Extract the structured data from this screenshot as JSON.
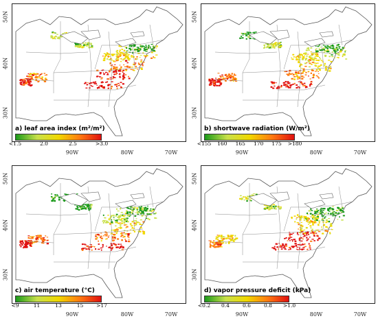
{
  "lat_labels": [
    "50N",
    "40N",
    "30N"
  ],
  "lon_labels": [
    "90W",
    "80W",
    "70W"
  ],
  "panels": [
    {
      "title": "a) leaf area index (m²/m²)",
      "ticks": [
        "<1.5",
        "2.0",
        "2.5",
        ">3.0"
      ],
      "colors": [
        "#1a9a1a",
        "#c8e04a",
        "#f0d800",
        "#ff7a10",
        "#e01010"
      ]
    },
    {
      "title": "b) shortwave radiation (W/m²)",
      "ticks": [
        "<155",
        "160",
        "165",
        "170",
        "175",
        ">180"
      ],
      "colors": [
        "#1a9a1a",
        "#c8e04a",
        "#f0d800",
        "#ff7a10",
        "#e01010"
      ]
    },
    {
      "title": "c) air temperature (°C)",
      "ticks": [
        "<9",
        "11",
        "13",
        "15",
        ">17"
      ],
      "colors": [
        "#1a9a1a",
        "#c8e04a",
        "#f0d800",
        "#ff7a10",
        "#e01010"
      ]
    },
    {
      "title": "d) vapor pressure deficit (kPa)",
      "ticks": [
        "<0.2",
        "0.4",
        "0.6",
        "0.8",
        ">1.0"
      ],
      "colors": [
        "#1a9a1a",
        "#c8e04a",
        "#f0d800",
        "#ff7a10",
        "#e01010"
      ]
    }
  ]
}
